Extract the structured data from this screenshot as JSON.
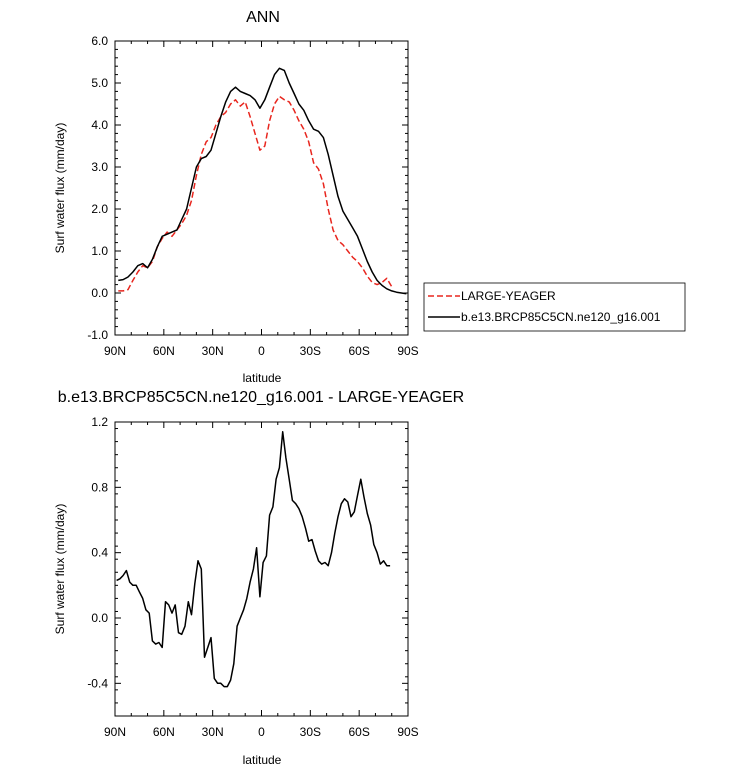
{
  "chart_data": [
    {
      "type": "line",
      "title": "ANN",
      "xlabel": "latitude",
      "ylabel": "Surf water flux (mm/day)",
      "xlim": [
        90,
        -90
      ],
      "ylim": [
        -1.0,
        6.0
      ],
      "xticks": [
        "90N",
        "60N",
        "30N",
        "0",
        "30S",
        "60S",
        "90S"
      ],
      "yticks": [
        "-1.0",
        "0.0",
        "1.0",
        "2.0",
        "3.0",
        "4.0",
        "5.0",
        "6.0"
      ],
      "legend": "outside-right",
      "series": [
        {
          "name": "LARGE-YEAGER",
          "color": "#e8261e",
          "dash": true,
          "x": [
            88,
            85,
            82,
            79,
            76,
            73,
            70,
            67,
            64,
            61,
            58,
            55,
            52,
            49,
            46,
            43,
            40,
            37,
            34,
            31,
            28,
            25,
            22,
            19,
            16,
            13,
            10,
            7,
            4,
            1,
            -2,
            -5,
            -8,
            -11,
            -14,
            -17,
            -20,
            -23,
            -26,
            -29,
            -32,
            -35,
            -38,
            -41,
            -44,
            -47,
            -50,
            -53,
            -56,
            -59,
            -62,
            -65,
            -68,
            -71,
            -74,
            -77,
            -80
          ],
          "values": [
            0.05,
            0.05,
            0.08,
            0.3,
            0.5,
            0.65,
            0.6,
            0.75,
            1.1,
            1.3,
            1.45,
            1.35,
            1.5,
            1.65,
            1.85,
            2.2,
            2.8,
            3.3,
            3.6,
            3.7,
            4.0,
            4.2,
            4.3,
            4.5,
            4.6,
            4.45,
            4.55,
            4.2,
            3.8,
            3.4,
            3.5,
            4.1,
            4.5,
            4.68,
            4.6,
            4.55,
            4.35,
            4.1,
            3.9,
            3.6,
            3.1,
            2.95,
            2.6,
            2.0,
            1.5,
            1.25,
            1.15,
            1.0,
            0.85,
            0.75,
            0.6,
            0.4,
            0.25,
            0.2,
            0.25,
            0.35,
            0.15
          ]
        },
        {
          "name": "b.e13.BRCP85C5CN.ne120_g16.001",
          "color": "#000000",
          "dash": false,
          "x": [
            88,
            85,
            82,
            79,
            76,
            73,
            70,
            67,
            64,
            61,
            58,
            55,
            52,
            49,
            46,
            43,
            40,
            37,
            34,
            31,
            28,
            25,
            22,
            19,
            16,
            13,
            10,
            7,
            4,
            1,
            -2,
            -5,
            -8,
            -11,
            -14,
            -17,
            -20,
            -23,
            -26,
            -29,
            -32,
            -35,
            -38,
            -41,
            -44,
            -47,
            -50,
            -53,
            -56,
            -59,
            -62,
            -65,
            -68,
            -71,
            -74,
            -77,
            -80,
            -83,
            -86,
            -89
          ],
          "values": [
            0.3,
            0.32,
            0.38,
            0.5,
            0.65,
            0.7,
            0.6,
            0.8,
            1.1,
            1.35,
            1.4,
            1.45,
            1.5,
            1.75,
            2.0,
            2.5,
            3.0,
            3.2,
            3.25,
            3.4,
            3.8,
            4.2,
            4.55,
            4.8,
            4.9,
            4.8,
            4.75,
            4.7,
            4.6,
            4.4,
            4.6,
            4.9,
            5.2,
            5.35,
            5.3,
            5.0,
            4.75,
            4.5,
            4.35,
            4.1,
            3.9,
            3.85,
            3.7,
            3.3,
            2.8,
            2.3,
            1.95,
            1.75,
            1.55,
            1.35,
            1.05,
            0.75,
            0.5,
            0.3,
            0.18,
            0.1,
            0.05,
            0.02,
            0.0,
            -0.02
          ]
        }
      ]
    },
    {
      "type": "line",
      "title": "b.e13.BRCP85C5CN.ne120_g16.001 - LARGE-YEAGER",
      "xlabel": "latitude",
      "ylabel": "Surf water flux (mm/day)",
      "xlim": [
        90,
        -90
      ],
      "ylim": [
        -0.6,
        1.2
      ],
      "xticks": [
        "90N",
        "60N",
        "30N",
        "0",
        "30S",
        "60S",
        "90S"
      ],
      "yticks": [
        "-0.4",
        "0.0",
        "0.4",
        "0.8",
        "1.2"
      ],
      "series": [
        {
          "color": "#000000",
          "dash": false,
          "x": [
            89,
            87,
            85,
            83,
            81,
            79,
            77,
            75,
            73,
            71,
            69,
            67,
            65,
            63,
            61,
            59,
            57,
            55,
            53,
            51,
            49,
            47,
            45,
            43,
            41,
            39,
            37,
            35,
            33,
            31,
            29,
            27,
            25,
            23,
            21,
            19,
            17,
            15,
            13,
            11,
            9,
            7,
            5,
            3,
            1,
            -1,
            -3,
            -5,
            -7,
            -9,
            -11,
            -13,
            -15,
            -17,
            -19,
            -21,
            -23,
            -25,
            -27,
            -29,
            -31,
            -33,
            -35,
            -37,
            -39,
            -41,
            -43,
            -45,
            -47,
            -49,
            -51,
            -53,
            -55,
            -57,
            -59,
            -61,
            -63,
            -65,
            -67,
            -69,
            -71,
            -73,
            -75,
            -77,
            -79
          ],
          "values": [
            0.23,
            0.24,
            0.26,
            0.29,
            0.22,
            0.2,
            0.2,
            0.16,
            0.12,
            0.05,
            0.03,
            -0.14,
            -0.16,
            -0.15,
            -0.18,
            0.1,
            0.08,
            0.03,
            0.08,
            -0.09,
            -0.1,
            -0.05,
            0.1,
            0.02,
            0.21,
            0.35,
            0.3,
            -0.24,
            -0.18,
            -0.12,
            -0.37,
            -0.4,
            -0.4,
            -0.42,
            -0.42,
            -0.38,
            -0.28,
            -0.05,
            0.0,
            0.05,
            0.12,
            0.22,
            0.3,
            0.43,
            0.13,
            0.34,
            0.38,
            0.63,
            0.68,
            0.85,
            0.92,
            1.14,
            0.98,
            0.85,
            0.72,
            0.7,
            0.67,
            0.62,
            0.55,
            0.47,
            0.48,
            0.41,
            0.35,
            0.33,
            0.34,
            0.32,
            0.4,
            0.52,
            0.62,
            0.7,
            0.73,
            0.71,
            0.62,
            0.65,
            0.75,
            0.85,
            0.74,
            0.64,
            0.57,
            0.45,
            0.4,
            0.33,
            0.35,
            0.32,
            0.32
          ]
        }
      ]
    }
  ]
}
